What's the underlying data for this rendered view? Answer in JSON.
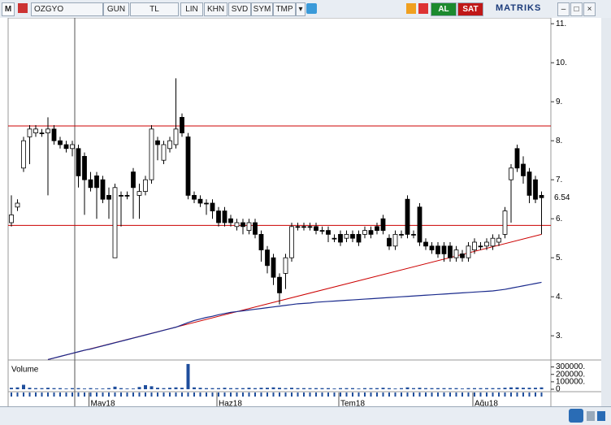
{
  "toolbar": {
    "logo": "M",
    "symbol": "OZGYO",
    "buttons": [
      "GUN",
      "TL",
      "LIN",
      "KHN",
      "SVD",
      "SYM",
      "TMP"
    ],
    "buy": "AL",
    "sell": "SAT",
    "brand": "MATRIKS"
  },
  "chart_data": {
    "type": "candlestick",
    "categories": [
      null,
      null,
      null,
      null,
      null,
      null,
      null,
      null,
      null,
      null,
      null,
      null,
      null,
      "May18",
      null,
      null,
      null,
      null,
      null,
      null,
      null,
      null,
      null,
      null,
      null,
      null,
      null,
      null,
      null,
      null,
      null,
      null,
      null,
      null,
      "Haz18",
      null,
      null,
      null,
      null,
      null,
      null,
      null,
      null,
      null,
      null,
      null,
      null,
      null,
      null,
      null,
      null,
      null,
      null,
      null,
      "Tem18",
      null,
      null,
      null,
      null,
      null,
      null,
      null,
      null,
      null,
      null,
      null,
      null,
      null,
      null,
      null,
      null,
      null,
      null,
      null,
      null,
      null,
      "Ağu18",
      null,
      null,
      null,
      null,
      null,
      null,
      null,
      null,
      null,
      null,
      null
    ],
    "open": [
      5.9,
      6.3,
      7.3,
      8.1,
      8.2,
      8.2,
      8.2,
      8.3,
      8.0,
      7.9,
      7.8,
      7.8,
      7.6,
      7.0,
      7.1,
      7.0,
      6.6,
      5.0,
      6.6,
      6.6,
      7.2,
      6.6,
      6.7,
      7.0,
      8.0,
      7.5,
      7.8,
      7.9,
      8.6,
      8.1,
      6.6,
      6.5,
      6.4,
      6.4,
      6.2,
      6.2,
      6.0,
      5.8,
      5.9,
      5.7,
      5.9,
      5.6,
      5.2,
      5.0,
      4.5,
      4.6,
      5.0,
      5.8,
      5.8,
      5.8,
      5.8,
      5.7,
      5.7,
      5.5,
      5.6,
      5.5,
      5.6,
      5.6,
      5.6,
      5.7,
      5.8,
      6.0,
      5.5,
      5.3,
      5.6,
      6.5,
      5.6,
      6.3,
      5.4,
      5.3,
      5.3,
      5.3,
      5.3,
      5.0,
      5.1,
      5.0,
      5.2,
      5.3,
      5.3,
      5.3,
      5.4,
      5.6,
      7.0,
      7.8,
      7.4,
      7.2,
      7.0,
      6.6
    ],
    "high": [
      6.6,
      6.5,
      8.1,
      8.4,
      8.4,
      8.3,
      8.6,
      8.4,
      8.1,
      8.0,
      8.0,
      7.9,
      7.7,
      7.2,
      7.2,
      7.1,
      6.8,
      6.9,
      6.7,
      6.7,
      7.3,
      6.9,
      7.1,
      8.4,
      8.1,
      8.0,
      8.1,
      9.6,
      8.7,
      8.2,
      6.7,
      6.6,
      6.5,
      6.5,
      6.3,
      6.3,
      6.1,
      6.0,
      6.0,
      6.0,
      6.0,
      5.7,
      5.3,
      5.1,
      4.6,
      5.1,
      5.9,
      5.9,
      5.9,
      5.9,
      5.9,
      5.8,
      5.8,
      5.6,
      5.7,
      5.7,
      5.7,
      5.7,
      5.8,
      5.8,
      5.9,
      6.1,
      5.6,
      5.7,
      5.7,
      6.6,
      5.7,
      6.4,
      5.5,
      5.4,
      5.4,
      5.4,
      5.4,
      5.3,
      5.2,
      5.4,
      5.5,
      5.4,
      5.5,
      5.6,
      5.6,
      6.3,
      7.4,
      7.9,
      7.6,
      7.3,
      7.1,
      6.7
    ],
    "low": [
      5.8,
      6.2,
      7.2,
      7.4,
      8.1,
      8.1,
      6.6,
      7.9,
      7.8,
      7.7,
      7.6,
      6.8,
      6.1,
      6.7,
      6.0,
      6.4,
      6.0,
      5.0,
      5.8,
      6.5,
      6.0,
      6.0,
      6.6,
      6.9,
      7.5,
      7.4,
      7.7,
      7.8,
      8.1,
      6.5,
      6.4,
      6.3,
      6.1,
      6.0,
      5.8,
      5.8,
      5.8,
      5.7,
      5.6,
      5.6,
      5.5,
      4.9,
      4.6,
      4.3,
      3.8,
      4.2,
      4.9,
      5.7,
      5.7,
      5.7,
      5.6,
      5.6,
      5.4,
      5.4,
      5.3,
      5.4,
      5.4,
      5.3,
      5.5,
      5.5,
      5.6,
      5.6,
      5.2,
      5.2,
      5.5,
      5.5,
      5.5,
      5.3,
      5.2,
      5.1,
      5.0,
      4.9,
      4.9,
      4.9,
      4.9,
      4.9,
      5.1,
      5.2,
      5.2,
      5.2,
      5.3,
      5.5,
      5.9,
      7.2,
      6.9,
      6.4,
      6.4,
      5.6
    ],
    "close": [
      6.1,
      6.4,
      8.0,
      8.3,
      8.3,
      8.2,
      8.3,
      8.0,
      7.9,
      7.8,
      7.9,
      7.1,
      7.0,
      6.8,
      6.8,
      6.5,
      6.5,
      6.8,
      6.6,
      6.6,
      6.8,
      6.7,
      7.0,
      8.3,
      7.9,
      7.9,
      8.0,
      8.3,
      8.2,
      6.6,
      6.5,
      6.4,
      6.4,
      6.2,
      5.9,
      5.9,
      5.9,
      5.9,
      5.8,
      5.9,
      5.6,
      5.2,
      4.8,
      4.5,
      4.1,
      5.0,
      5.8,
      5.8,
      5.8,
      5.8,
      5.7,
      5.7,
      5.6,
      5.5,
      5.4,
      5.6,
      5.5,
      5.4,
      5.7,
      5.6,
      5.7,
      5.7,
      5.3,
      5.6,
      5.6,
      5.6,
      5.6,
      5.4,
      5.3,
      5.2,
      5.1,
      5.1,
      5.0,
      5.2,
      5.0,
      5.3,
      5.4,
      5.3,
      5.4,
      5.5,
      5.5,
      6.2,
      7.3,
      7.3,
      7.1,
      6.6,
      6.5,
      6.54
    ],
    "moving_average": {
      "color": "#1a2a8c",
      "values": [
        null,
        null,
        null,
        null,
        null,
        null,
        2.39,
        2.43,
        2.47,
        2.51,
        2.55,
        2.59,
        2.63,
        2.66,
        2.7,
        2.74,
        2.78,
        2.82,
        2.86,
        2.9,
        2.94,
        2.98,
        3.02,
        3.06,
        3.1,
        3.14,
        3.18,
        3.22,
        3.28,
        3.34,
        3.39,
        3.43,
        3.47,
        3.5,
        3.54,
        3.57,
        3.6,
        3.62,
        3.64,
        3.66,
        3.68,
        3.7,
        3.72,
        3.74,
        3.76,
        3.78,
        3.8,
        3.82,
        3.83,
        3.84,
        3.86,
        3.87,
        3.88,
        3.89,
        3.9,
        3.91,
        3.92,
        3.93,
        3.94,
        3.95,
        3.96,
        3.97,
        3.98,
        3.99,
        4.0,
        4.01,
        4.02,
        4.03,
        4.04,
        4.05,
        4.06,
        4.07,
        4.08,
        4.09,
        4.1,
        4.11,
        4.12,
        4.13,
        4.14,
        4.15,
        4.17,
        4.19,
        4.22,
        4.25,
        4.28,
        4.31,
        4.34,
        4.37
      ]
    },
    "levels": [
      8.38,
      5.83
    ],
    "level_color": "#cc0000",
    "trendline": {
      "x": [
        6,
        87
      ],
      "y": [
        2.39,
        5.6
      ],
      "color": "#cc0000"
    },
    "last_price": {
      "value": 6.54,
      "label": "6.54"
    },
    "ylim": [
      2.4,
      11.15
    ],
    "yticks": [
      {
        "value": 3,
        "label": "3."
      },
      {
        "value": 4,
        "label": "4."
      },
      {
        "value": 5,
        "label": "5."
      },
      {
        "value": 6,
        "label": "6."
      },
      {
        "value": 7,
        "label": "7."
      },
      {
        "value": 8,
        "label": "8."
      },
      {
        "value": 9,
        "label": "9."
      },
      {
        "value": 10,
        "label": "10."
      },
      {
        "value": 11,
        "label": "11."
      }
    ],
    "volume_title": "Volume",
    "volume_color": "#1f4e9c",
    "volume": [
      20000,
      25000,
      60000,
      20000,
      15000,
      15000,
      20000,
      15000,
      15000,
      10000,
      15000,
      15000,
      10000,
      15000,
      10000,
      10000,
      15000,
      35000,
      15000,
      10000,
      10000,
      30000,
      55000,
      40000,
      20000,
      15000,
      20000,
      25000,
      20000,
      340000,
      25000,
      20000,
      15000,
      15000,
      15000,
      20000,
      15000,
      15000,
      15000,
      20000,
      15000,
      20000,
      20000,
      25000,
      20000,
      15000,
      20000,
      15000,
      15000,
      15000,
      15000,
      15000,
      15000,
      10000,
      15000,
      15000,
      15000,
      10000,
      15000,
      15000,
      15000,
      20000,
      15000,
      10000,
      15000,
      25000,
      15000,
      20000,
      15000,
      15000,
      15000,
      15000,
      15000,
      15000,
      10000,
      15000,
      15000,
      15000,
      15000,
      15000,
      15000,
      20000,
      25000,
      25000,
      20000,
      20000,
      20000,
      25000
    ],
    "volume_ylim": [
      0,
      350000
    ],
    "volume_ticks": [
      0,
      {
        "value": 100000,
        "label": "100000."
      },
      {
        "value": 200000,
        "label": "200000."
      },
      {
        "value": 300000,
        "label": "300000."
      }
    ]
  }
}
